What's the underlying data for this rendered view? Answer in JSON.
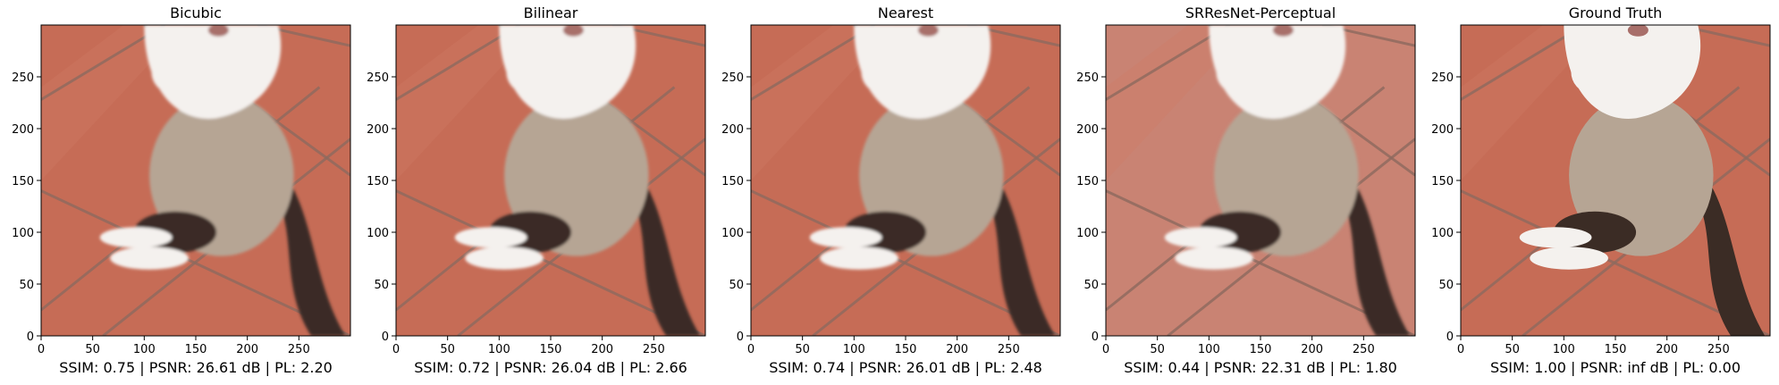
{
  "figure": {
    "panels": [
      {
        "title": "Bicubic",
        "caption": "SSIM: 0.75 | PSNR: 26.61 dB | PL: 2.20",
        "ssim": 0.75,
        "psnr_db": 26.61,
        "pl": 2.2
      },
      {
        "title": "Bilinear",
        "caption": "SSIM: 0.72 | PSNR: 26.04 dB | PL: 2.66",
        "ssim": 0.72,
        "psnr_db": 26.04,
        "pl": 2.66
      },
      {
        "title": "Nearest",
        "caption": "SSIM: 0.74 | PSNR: 26.01 dB | PL: 2.48",
        "ssim": 0.74,
        "psnr_db": 26.01,
        "pl": 2.48
      },
      {
        "title": "SRResNet-Perceptual",
        "caption": "SSIM: 0.44 | PSNR: 22.31 dB | PL: 1.80",
        "ssim": 0.44,
        "psnr_db": 22.31,
        "pl": 1.8
      },
      {
        "title": "Ground Truth",
        "caption": "SSIM: 1.00 | PSNR: inf dB | PL: 0.00",
        "ssim": 1.0,
        "psnr_db": "inf",
        "pl": 0.0
      }
    ]
  },
  "chart_data": {
    "type": "image-grid",
    "xlim": [
      0,
      300
    ],
    "ylim": [
      300,
      0
    ],
    "xticks": [
      0,
      50,
      100,
      150,
      200,
      250
    ],
    "yticks": [
      0,
      50,
      100,
      150,
      200,
      250
    ],
    "xtick_labels": [
      "0",
      "50",
      "100",
      "150",
      "200",
      "250"
    ],
    "ytick_labels": [
      "0",
      "50",
      "100",
      "150",
      "200",
      "250"
    ],
    "series": [
      {
        "name": "Bicubic",
        "ssim": 0.75,
        "psnr_db": 26.61,
        "pl": 2.2
      },
      {
        "name": "Bilinear",
        "ssim": 0.72,
        "psnr_db": 26.04,
        "pl": 2.66
      },
      {
        "name": "Nearest",
        "ssim": 0.74,
        "psnr_db": 26.01,
        "pl": 2.48
      },
      {
        "name": "SRResNet-Perceptual",
        "ssim": 0.44,
        "psnr_db": 22.31,
        "pl": 1.8
      },
      {
        "name": "Ground Truth",
        "ssim": 1.0,
        "psnr_db": "inf",
        "pl": 0.0
      }
    ]
  },
  "colors": {
    "tile": "#c66c56",
    "tile_light": "#cf7b64",
    "grout": "#8d6a5f",
    "cat_white": "#f4f1ee",
    "cat_fawn": "#b6a594",
    "cat_dark": "#3b2c25",
    "srresnet_tile": "#c98373"
  }
}
